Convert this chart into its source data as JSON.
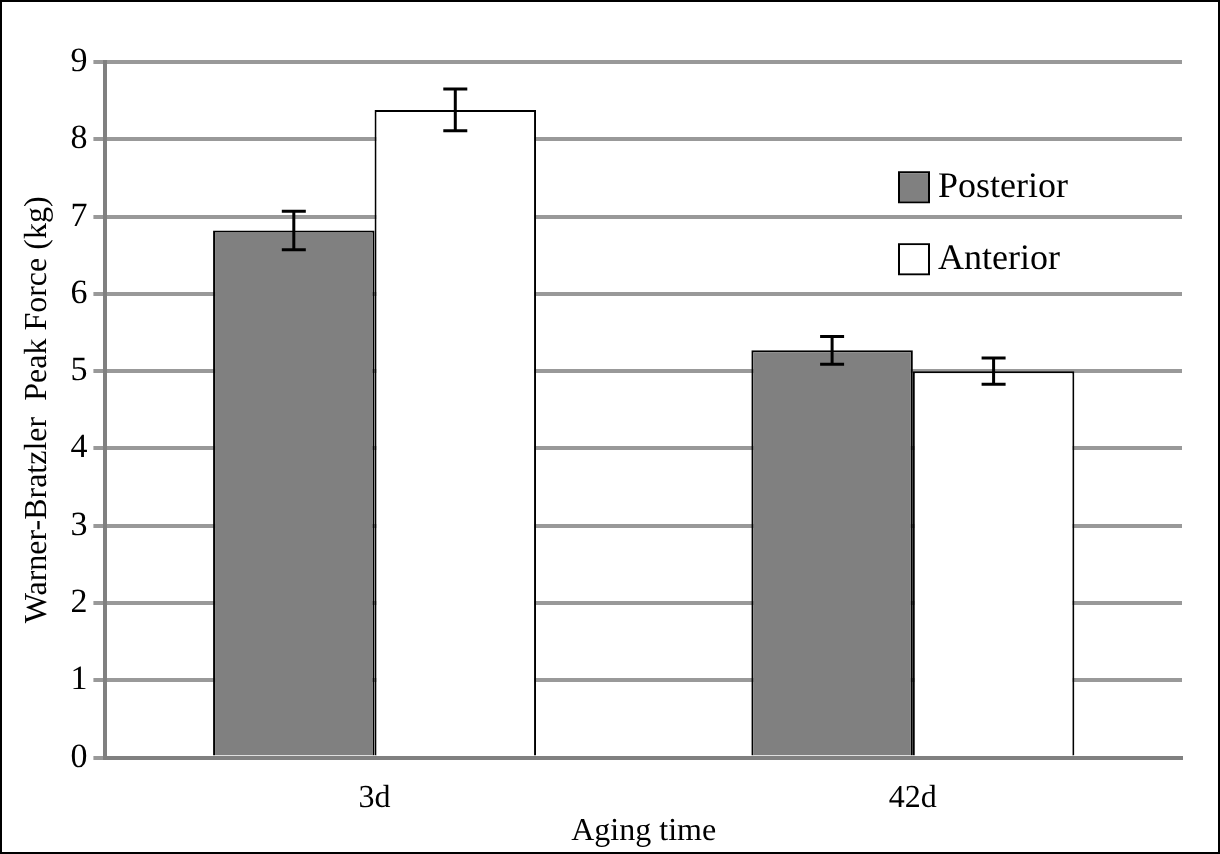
{
  "chart_data": {
    "type": "bar",
    "xlabel": "Aging time",
    "ylabel": "Warner-Bratzler  Peak Force (kg)",
    "categories": [
      "3d",
      "42d"
    ],
    "series": [
      {
        "name": "Posterior",
        "color": "#808080",
        "values": [
          6.82,
          5.27
        ],
        "errors": [
          0.25,
          0.18
        ]
      },
      {
        "name": "Anterior",
        "color": "#ffffff",
        "values": [
          8.38,
          5.0
        ],
        "errors": [
          0.27,
          0.17
        ]
      }
    ],
    "ylim": [
      0,
      9
    ],
    "yticks": [
      0,
      1,
      2,
      3,
      4,
      5,
      6,
      7,
      8,
      9
    ],
    "grid": "y",
    "legend": "right"
  }
}
